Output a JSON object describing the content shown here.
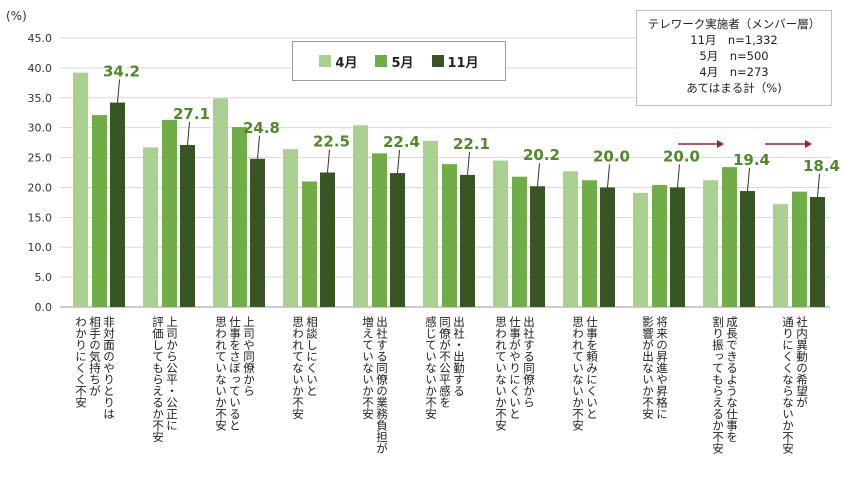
{
  "chart_data": {
    "type": "bar",
    "unit_label": "(%)",
    "ylim": [
      0,
      45
    ],
    "yticks": [
      "0.0",
      "5.0",
      "10.0",
      "15.0",
      "20.0",
      "25.0",
      "30.0",
      "35.0",
      "40.0",
      "45.0"
    ],
    "categories": [
      [
        "非対面のやりとりは",
        "相手の気持ちが",
        "わかりにくく不安"
      ],
      [
        "上司から公平・公正に",
        "評価してもらえるか不安"
      ],
      [
        "上司や同僚から",
        "仕事をさぼっていると",
        "思われていないか不安"
      ],
      [
        "相談しにくいと",
        "思われてないか不安"
      ],
      [
        "出社する同僚の業務負担が",
        "増えていないか不安"
      ],
      [
        "出社・出勤する",
        "同僚が不公平感を",
        "感じていないか不安"
      ],
      [
        "出社する同僚から",
        "仕事がやりにくいと",
        "思われていないか不安"
      ],
      [
        "仕事を頼みにくいと",
        "思われていないか不安"
      ],
      [
        "将来の昇進や昇格に",
        "影響が出ないか不安"
      ],
      [
        "成長できるような仕事を",
        "割り振ってもらえるか不安"
      ],
      [
        "社内異動の希望が",
        "通りにくくならないか不安"
      ]
    ],
    "series": [
      {
        "name": "4月",
        "color": "#a9d08e",
        "values": [
          39.2,
          26.7,
          34.9,
          26.4,
          30.4,
          27.8,
          24.5,
          22.7,
          19.1,
          21.2,
          17.2
        ]
      },
      {
        "name": "5月",
        "color": "#70ad47",
        "values": [
          32.1,
          31.3,
          30.1,
          21.0,
          25.7,
          23.9,
          21.8,
          21.2,
          20.4,
          23.4,
          19.3
        ]
      },
      {
        "name": "11月",
        "color": "#375623",
        "values": [
          34.2,
          27.1,
          24.8,
          22.5,
          22.4,
          22.1,
          20.2,
          20.0,
          20.0,
          19.4,
          18.4
        ]
      }
    ],
    "data_labels": [
      "34.2",
      "27.1",
      "24.8",
      "22.5",
      "22.4",
      "22.1",
      "20.2",
      "20.0",
      "20.0",
      "19.4",
      "18.4"
    ],
    "arrow_color": "#a02020",
    "legend_placement": "top-center"
  },
  "note": {
    "title": "テレワーク実施者（メンバー層）",
    "lines": [
      "11月　n=1,332",
      "5月　n=500",
      "4月　n=273",
      "あてはまる計（%)"
    ]
  }
}
